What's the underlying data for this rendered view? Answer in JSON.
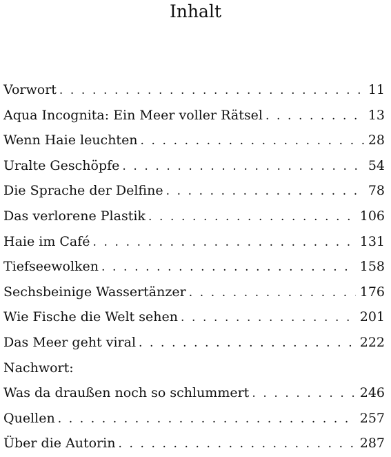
{
  "title": "Inhalt",
  "entries": [
    {
      "title": "Vorwort",
      "page": "11"
    },
    {
      "title": "Aqua Incognita: Ein Meer voller Rätsel",
      "page": "13"
    },
    {
      "title": "Wenn Haie leuchten",
      "page": "28"
    },
    {
      "title": "Uralte Geschöpfe",
      "page": "54"
    },
    {
      "title": "Die Sprache der Delfine",
      "page": "78"
    },
    {
      "title": "Das verlorene Plastik",
      "page": "106"
    },
    {
      "title": "Haie im Café",
      "page": "131"
    },
    {
      "title": "Tiefseewolken",
      "page": "158"
    },
    {
      "title": "Sechsbeinige Wassertänzer",
      "page": "176"
    },
    {
      "title": "Wie Fische die Welt sehen",
      "page": "201"
    },
    {
      "title": "Das Meer geht viral",
      "page": "222"
    },
    {
      "title": "Nachwort:"
    },
    {
      "title": "Was da draußen noch so schlummert",
      "page": "246"
    },
    {
      "title": "Quellen",
      "page": "257"
    },
    {
      "title": "Über die Autorin",
      "page": "287"
    }
  ]
}
